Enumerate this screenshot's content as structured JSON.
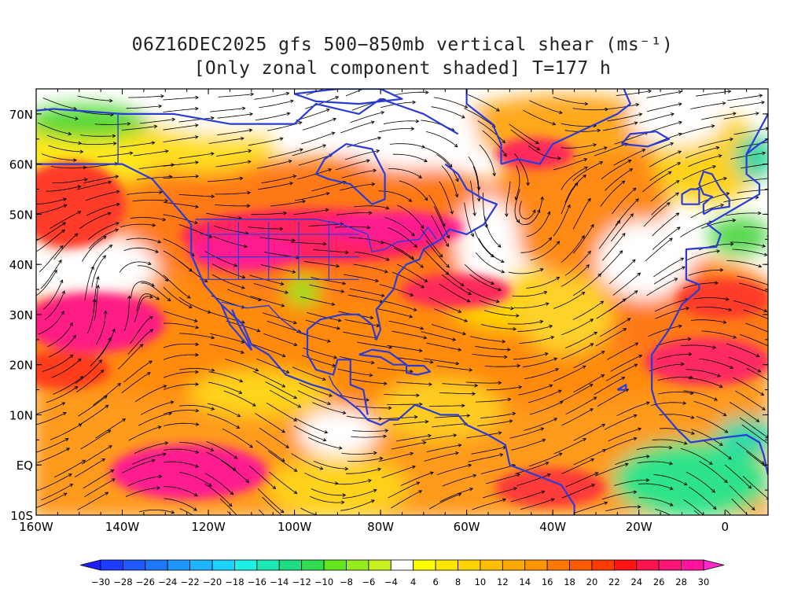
{
  "title": {
    "line1": "06Z16DEC2025 gfs 500−850mb vertical shear (ms⁻¹)",
    "line2": "[Only zonal component shaded] T=177 h"
  },
  "map": {
    "lat_labels": [
      "70N",
      "60N",
      "50N",
      "40N",
      "30N",
      "20N",
      "10N",
      "EQ",
      "10S"
    ],
    "lon_labels": [
      "160W",
      "140W",
      "120W",
      "100W",
      "80W",
      "60W",
      "40W",
      "20W",
      "0"
    ],
    "extent": {
      "lon": [
        -160,
        10
      ],
      "lat": [
        -10,
        75
      ]
    },
    "coastline_color": "#2a3bd6",
    "streamline_color": "#000000"
  },
  "colorbar": {
    "values": [
      -30,
      -28,
      -26,
      -24,
      -22,
      -20,
      -18,
      -16,
      -14,
      -12,
      -10,
      -8,
      -6,
      -4,
      4,
      6,
      8,
      10,
      12,
      14,
      16,
      18,
      20,
      22,
      24,
      26,
      28,
      30
    ],
    "labels": [
      "−30",
      "−28",
      "−26",
      "−24",
      "−22",
      "−20",
      "−18",
      "−16",
      "−14",
      "−12",
      "−10",
      "−8",
      "−6",
      "−4",
      "4",
      "6",
      "8",
      "10",
      "12",
      "14",
      "16",
      "18",
      "20",
      "22",
      "24",
      "26",
      "28",
      "30"
    ],
    "colors": [
      "#1e1eff",
      "#1e3cff",
      "#1e5aff",
      "#1e78ff",
      "#1e96ff",
      "#1eb4ff",
      "#1ed2ff",
      "#1ef0e6",
      "#1ee6b4",
      "#1edc82",
      "#32dc50",
      "#64e61e",
      "#96eb1e",
      "#c8f01e",
      "#ffffff",
      "#ffff00",
      "#ffe600",
      "#ffd200",
      "#ffbe00",
      "#ffaa00",
      "#ff9600",
      "#ff7800",
      "#ff5a00",
      "#ff3c00",
      "#ff1414",
      "#ff1450",
      "#ff1478",
      "#ff14a0",
      "#ff28c8"
    ]
  }
}
